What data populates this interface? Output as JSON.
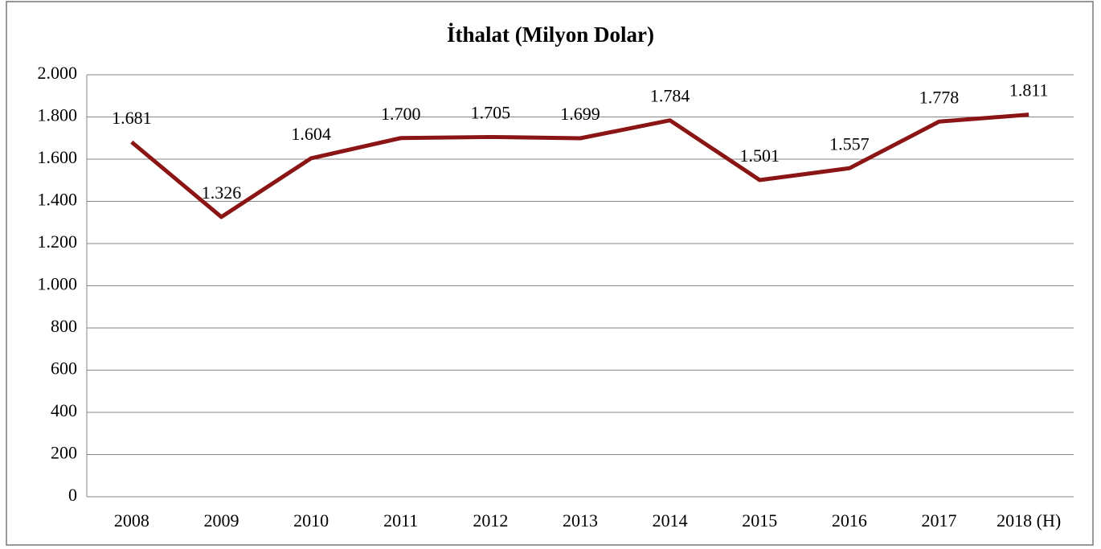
{
  "chart_data": {
    "type": "line",
    "title": "İthalat (Milyon Dolar)",
    "categories": [
      "2008",
      "2009",
      "2010",
      "2011",
      "2012",
      "2013",
      "2014",
      "2015",
      "2016",
      "2017",
      "2018 (H)"
    ],
    "series": [
      {
        "name": "İthalat",
        "color": "#8b1414",
        "values": [
          1681,
          1326,
          1604,
          1700,
          1705,
          1699,
          1784,
          1501,
          1557,
          1778,
          1811
        ],
        "value_labels": [
          "1.681",
          "1.326",
          "1.604",
          "1.700",
          "1.705",
          "1.699",
          "1.784",
          "1.501",
          "1.557",
          "1.778",
          "1.811"
        ]
      }
    ],
    "ylim": [
      0,
      2000
    ],
    "yticks": [
      0,
      200,
      400,
      600,
      800,
      {
        "value": 1000,
        "label": "1.000"
      },
      {
        "value": 1200,
        "label": "1.200"
      },
      {
        "value": 1400,
        "label": "1.400"
      },
      {
        "value": 1600,
        "label": "1.600"
      },
      {
        "value": 1800,
        "label": "1.800"
      },
      {
        "value": 2000,
        "label": "2.000"
      }
    ],
    "grid": true
  }
}
